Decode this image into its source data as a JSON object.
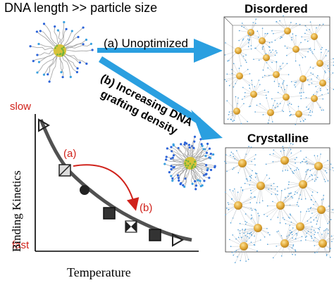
{
  "title": "DNA length >> particle size",
  "panel_top": {
    "label": "Disordered"
  },
  "panel_bottom": {
    "label": "Crystalline"
  },
  "arrow_a": {
    "label": "(a) Unoptimized"
  },
  "arrow_b": {
    "label_line1": "(b) Increasing DNA",
    "label_line2": "grafting density"
  },
  "plot": {
    "y_top_label": "slow",
    "y_bottom_label": "fast",
    "y_axis_label": "Binding Kinetics",
    "x_axis_label": "Temperature",
    "marker_a": "(a)",
    "marker_b": "(b)"
  },
  "colors": {
    "arrow": "#2a9fe0",
    "accent": "#d0221b",
    "particle": "#e3aa3a"
  }
}
